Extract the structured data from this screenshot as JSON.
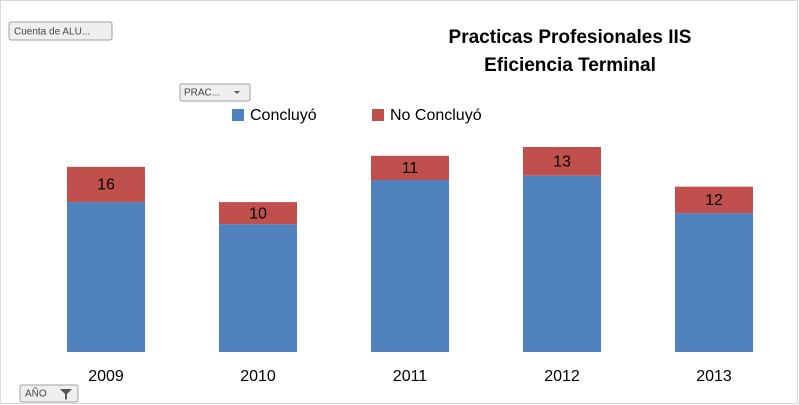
{
  "chart_data": {
    "type": "stacked_bar",
    "title": [
      "Practicas Profesionales IIS",
      "Eficiencia Terminal"
    ],
    "categories": [
      "2009",
      "2010",
      "2011",
      "2012",
      "2013"
    ],
    "series": [
      {
        "name": "Concluyó",
        "color": "#4f81bd",
        "values": [
          68,
          58,
          78,
          80,
          63
        ]
      },
      {
        "name": "No Concluyó",
        "color": "#c0504d",
        "values": [
          16,
          10,
          11,
          13,
          12
        ]
      }
    ],
    "buttons": {
      "value_field": "Cuenta de ALU...",
      "series_field": "PRAC...",
      "axis_field": "AÑO"
    }
  }
}
